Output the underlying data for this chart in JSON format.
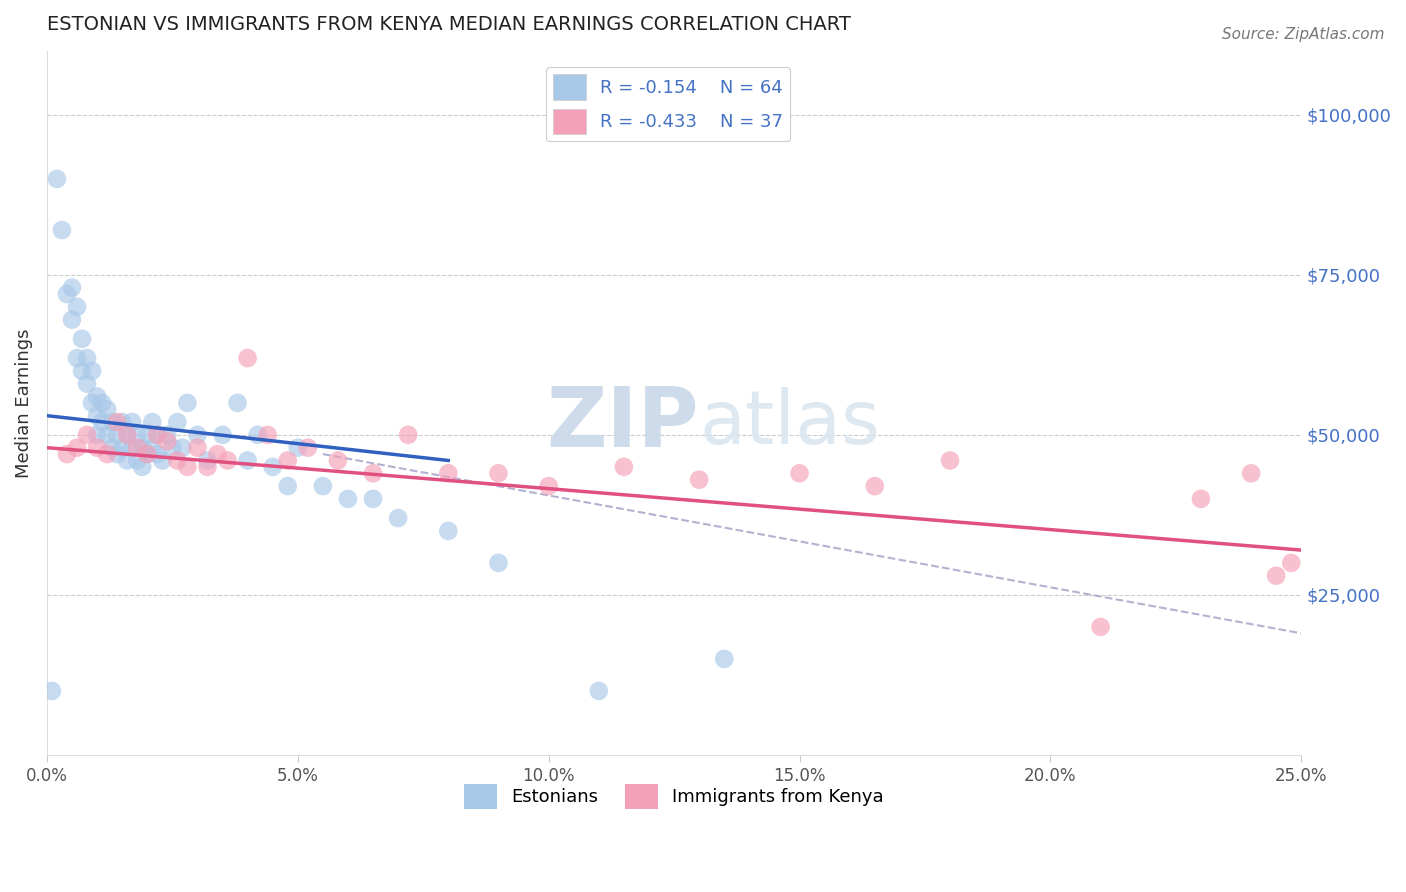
{
  "title": "ESTONIAN VS IMMIGRANTS FROM KENYA MEDIAN EARNINGS CORRELATION CHART",
  "source": "Source: ZipAtlas.com",
  "ylabel": "Median Earnings",
  "xlim": [
    0.0,
    0.25
  ],
  "ylim": [
    0,
    110000
  ],
  "yticks": [
    0,
    25000,
    50000,
    75000,
    100000
  ],
  "ytick_labels": [
    "",
    "$25,000",
    "$50,000",
    "$75,000",
    "$100,000"
  ],
  "xticks": [
    0.0,
    0.05,
    0.1,
    0.15,
    0.2,
    0.25
  ],
  "xtick_labels": [
    "0.0%",
    "5.0%",
    "10.0%",
    "15.0%",
    "20.0%",
    "25.0%"
  ],
  "watermark_zip": "ZIP",
  "watermark_atlas": "atlas",
  "legend_r1": "R = -0.154",
  "legend_n1": "N = 64",
  "legend_r2": "R = -0.433",
  "legend_n2": "N = 37",
  "color_estonian": "#A8C8E8",
  "color_kenya": "#F4A0B8",
  "color_line_estonian": "#3060C0",
  "color_line_kenya": "#E05080",
  "color_axis_labels": "#4472C4",
  "color_dashed": "#AAAACC",
  "estonians_x": [
    0.001,
    0.002,
    0.003,
    0.004,
    0.005,
    0.005,
    0.006,
    0.006,
    0.007,
    0.007,
    0.008,
    0.008,
    0.009,
    0.009,
    0.01,
    0.01,
    0.01,
    0.011,
    0.011,
    0.012,
    0.012,
    0.013,
    0.013,
    0.014,
    0.014,
    0.015,
    0.015,
    0.016,
    0.016,
    0.017,
    0.017,
    0.018,
    0.018,
    0.019,
    0.019,
    0.02,
    0.02,
    0.021,
    0.021,
    0.022,
    0.022,
    0.023,
    0.024,
    0.025,
    0.026,
    0.027,
    0.028,
    0.03,
    0.032,
    0.035,
    0.038,
    0.04,
    0.042,
    0.045,
    0.048,
    0.05,
    0.055,
    0.06,
    0.065,
    0.07,
    0.08,
    0.09,
    0.11,
    0.135
  ],
  "estonians_y": [
    10000,
    90000,
    82000,
    72000,
    68000,
    73000,
    62000,
    70000,
    65000,
    60000,
    58000,
    62000,
    55000,
    60000,
    53000,
    56000,
    50000,
    52000,
    55000,
    50000,
    54000,
    48000,
    52000,
    50000,
    47000,
    52000,
    48000,
    50000,
    46000,
    48000,
    52000,
    46000,
    50000,
    48000,
    45000,
    50000,
    47000,
    48000,
    52000,
    47000,
    50000,
    46000,
    50000,
    48000,
    52000,
    48000,
    55000,
    50000,
    46000,
    50000,
    55000,
    46000,
    50000,
    45000,
    42000,
    48000,
    42000,
    40000,
    40000,
    37000,
    35000,
    30000,
    10000,
    15000
  ],
  "kenya_x": [
    0.004,
    0.006,
    0.008,
    0.01,
    0.012,
    0.014,
    0.016,
    0.018,
    0.02,
    0.022,
    0.024,
    0.026,
    0.028,
    0.03,
    0.032,
    0.034,
    0.036,
    0.04,
    0.044,
    0.048,
    0.052,
    0.058,
    0.065,
    0.072,
    0.08,
    0.09,
    0.1,
    0.115,
    0.13,
    0.15,
    0.165,
    0.18,
    0.21,
    0.23,
    0.24,
    0.245,
    0.248
  ],
  "kenya_y": [
    47000,
    48000,
    50000,
    48000,
    47000,
    52000,
    50000,
    48000,
    47000,
    50000,
    49000,
    46000,
    45000,
    48000,
    45000,
    47000,
    46000,
    62000,
    50000,
    46000,
    48000,
    46000,
    44000,
    50000,
    44000,
    44000,
    42000,
    45000,
    43000,
    44000,
    42000,
    46000,
    20000,
    40000,
    44000,
    28000,
    30000
  ],
  "blue_line": [
    [
      0.0,
      0.08
    ],
    [
      53000,
      46000
    ]
  ],
  "pink_line": [
    [
      0.0,
      0.25
    ],
    [
      48000,
      32000
    ]
  ],
  "dash_line": [
    [
      0.055,
      0.25
    ],
    [
      47000,
      19000
    ]
  ]
}
